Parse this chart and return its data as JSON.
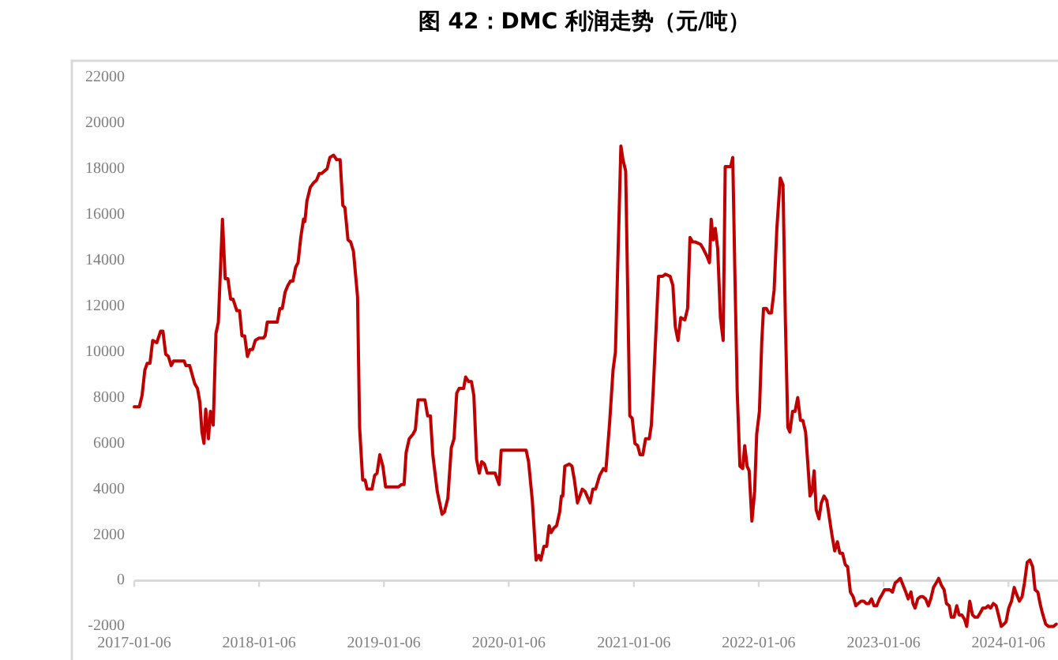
{
  "chart_data": {
    "type": "line",
    "title": "图 42：DMC 利润走势（元/吨）",
    "xlim": [
      "2017-01-06",
      "2024-05-30"
    ],
    "xticks": [
      "2017-01-06",
      "2018-01-06",
      "2019-01-06",
      "2020-01-06",
      "2021-01-06",
      "2022-01-06",
      "2023-01-06",
      "2024-01-06"
    ],
    "ylim": [
      -2000,
      22000
    ],
    "yticks": [
      -2000,
      0,
      2000,
      4000,
      6000,
      8000,
      10000,
      12000,
      14000,
      16000,
      18000,
      20000,
      22000
    ],
    "x": [
      "2017-01-06",
      "2017-01-21",
      "2017-01-29",
      "2017-02-06",
      "2017-02-13",
      "2017-02-21",
      "2017-03-01",
      "2017-03-13",
      "2017-03-24",
      "2017-03-31",
      "2017-04-08",
      "2017-04-16",
      "2017-04-24",
      "2017-05-01",
      "2017-06-01",
      "2017-06-06",
      "2017-06-17",
      "2017-07-02",
      "2017-07-10",
      "2017-07-17",
      "2017-07-23",
      "2017-07-29",
      "2017-08-03",
      "2017-08-11",
      "2017-08-17",
      "2017-08-25",
      "2017-09-02",
      "2017-09-09",
      "2017-09-21",
      "2017-09-29",
      "2017-10-07",
      "2017-10-15",
      "2017-10-22",
      "2017-11-02",
      "2017-11-10",
      "2017-11-17",
      "2017-11-25",
      "2017-12-03",
      "2017-12-10",
      "2017-12-18",
      "2017-12-26",
      "2018-01-05",
      "2018-01-18",
      "2018-01-24",
      "2018-01-30",
      "2018-02-13",
      "2018-02-28",
      "2018-03-08",
      "2018-03-15",
      "2018-03-23",
      "2018-03-31",
      "2018-04-08",
      "2018-04-15",
      "2018-04-23",
      "2018-04-30",
      "2018-05-08",
      "2018-05-16",
      "2018-05-20",
      "2018-05-26",
      "2018-06-05",
      "2018-06-15",
      "2018-06-23",
      "2018-07-01",
      "2018-07-08",
      "2018-07-16",
      "2018-07-24",
      "2018-08-01",
      "2018-08-12",
      "2018-08-21",
      "2018-08-31",
      "2018-09-08",
      "2018-09-14",
      "2018-09-23",
      "2018-10-01",
      "2018-10-09",
      "2018-10-21",
      "2018-10-27",
      "2018-11-05",
      "2018-11-12",
      "2018-11-18",
      "2018-12-02",
      "2018-12-10",
      "2018-12-17",
      "2018-12-25",
      "2019-01-03",
      "2019-01-11",
      "2019-01-23",
      "2019-02-18",
      "2019-02-26",
      "2019-03-06",
      "2019-03-12",
      "2019-03-21",
      "2019-04-01",
      "2019-04-08",
      "2019-04-16",
      "2019-05-06",
      "2019-05-14",
      "2019-05-22",
      "2019-05-29",
      "2019-06-11",
      "2019-06-25",
      "2019-07-02",
      "2019-07-12",
      "2019-07-22",
      "2019-07-30",
      "2019-08-07",
      "2019-08-14",
      "2019-08-27",
      "2019-09-02",
      "2019-09-11",
      "2019-09-19",
      "2019-09-26",
      "2019-10-04",
      "2019-10-12",
      "2019-10-19",
      "2019-10-27",
      "2019-11-04",
      "2019-11-27",
      "2019-12-09",
      "2019-12-15",
      "2020-01-06",
      "2020-02-26",
      "2020-03-04",
      "2020-03-15",
      "2020-03-26",
      "2020-04-03",
      "2020-04-09",
      "2020-04-18",
      "2020-04-26",
      "2020-05-03",
      "2020-05-09",
      "2020-05-17",
      "2020-05-25",
      "2020-06-03",
      "2020-06-08",
      "2020-06-12",
      "2020-06-18",
      "2020-07-01",
      "2020-07-09",
      "2020-07-16",
      "2020-07-25",
      "2020-08-08",
      "2020-08-16",
      "2020-08-31",
      "2020-09-08",
      "2020-09-16",
      "2020-09-28",
      "2020-10-09",
      "2020-10-16",
      "2020-10-27",
      "2020-11-06",
      "2020-11-13",
      "2020-11-29",
      "2020-12-05",
      "2020-12-13",
      "2020-12-25",
      "2021-01-01",
      "2021-01-09",
      "2021-01-17",
      "2021-01-24",
      "2021-02-01",
      "2021-02-09",
      "2021-02-20",
      "2021-02-26",
      "2021-03-04",
      "2021-03-19",
      "2021-03-31",
      "2021-04-08",
      "2021-04-22",
      "2021-04-30",
      "2021-05-07",
      "2021-05-15",
      "2021-05-23",
      "2021-06-04",
      "2021-06-12",
      "2021-06-19",
      "2021-06-27",
      "2021-07-05",
      "2021-07-20",
      "2021-07-28",
      "2021-08-07",
      "2021-08-15",
      "2021-08-20",
      "2021-08-26",
      "2021-09-01",
      "2021-09-08",
      "2021-09-16",
      "2021-09-24",
      "2021-09-30",
      "2021-10-16",
      "2021-10-22",
      "2021-10-28",
      "2021-11-04",
      "2021-11-12",
      "2021-11-20",
      "2021-11-26",
      "2021-12-03",
      "2021-12-09",
      "2021-12-17",
      "2021-12-25",
      "2021-12-31",
      "2022-01-08",
      "2022-01-15",
      "2022-01-20",
      "2022-01-28",
      "2022-02-05",
      "2022-02-12",
      "2022-02-20",
      "2022-02-28",
      "2022-03-10",
      "2022-03-18",
      "2022-03-25",
      "2022-04-01",
      "2022-04-07",
      "2022-04-15",
      "2022-04-22",
      "2022-04-30",
      "2022-05-08",
      "2022-05-15",
      "2022-05-23",
      "2022-05-31",
      "2022-06-05",
      "2022-06-11",
      "2022-06-17",
      "2022-06-23",
      "2022-07-01",
      "2022-07-08",
      "2022-07-16",
      "2022-07-24",
      "2022-08-01",
      "2022-08-08",
      "2022-08-16",
      "2022-08-24",
      "2022-08-31",
      "2022-09-08",
      "2022-09-16",
      "2022-09-23",
      "2022-10-01",
      "2022-10-09",
      "2022-10-17",
      "2022-10-24",
      "2022-11-01",
      "2022-11-09",
      "2022-11-16",
      "2022-11-24",
      "2022-12-02",
      "2022-12-09",
      "2022-12-17",
      "2022-12-25",
      "2023-01-02",
      "2023-01-09",
      "2023-01-17",
      "2023-01-24",
      "2023-02-01",
      "2023-02-09",
      "2023-02-17",
      "2023-02-24",
      "2023-03-04",
      "2023-03-12",
      "2023-03-19",
      "2023-03-27",
      "2023-04-02",
      "2023-04-08",
      "2023-04-16",
      "2023-04-24",
      "2023-05-01",
      "2023-05-09",
      "2023-05-17",
      "2023-05-24",
      "2023-06-01",
      "2023-06-09",
      "2023-06-16",
      "2023-06-24",
      "2023-07-02",
      "2023-07-09",
      "2023-07-17",
      "2023-07-23",
      "2023-07-31",
      "2023-08-08",
      "2023-08-15",
      "2023-08-23",
      "2023-08-31",
      "2023-09-06",
      "2023-09-15",
      "2023-09-23",
      "2023-09-30",
      "2023-10-08",
      "2023-10-16",
      "2023-10-23",
      "2023-10-31",
      "2023-11-08",
      "2023-11-15",
      "2023-11-23",
      "2023-12-01",
      "2023-12-08",
      "2023-12-16",
      "2023-12-24",
      "2023-12-30",
      "2024-01-07",
      "2024-01-15",
      "2024-01-23",
      "2024-01-30",
      "2024-02-07",
      "2024-02-15",
      "2024-02-22",
      "2024-03-01",
      "2024-03-09",
      "2024-03-17",
      "2024-03-24",
      "2024-04-01",
      "2024-04-09",
      "2024-04-16",
      "2024-04-24",
      "2024-05-02",
      "2024-05-10",
      "2024-05-17",
      "2024-05-25"
    ],
    "series": [
      {
        "color": "#c00000",
        "values": [
          7600,
          7600,
          8100,
          9200,
          9500,
          9500,
          10500,
          10400,
          10900,
          10900,
          9900,
          9800,
          9400,
          9600,
          9600,
          9400,
          9400,
          8600,
          8400,
          7800,
          6500,
          6000,
          7500,
          6200,
          7400,
          6800,
          10800,
          11300,
          15800,
          13200,
          13200,
          12300,
          12300,
          11800,
          11800,
          10700,
          10700,
          9800,
          10100,
          10100,
          10500,
          10600,
          10600,
          10700,
          11300,
          11300,
          11300,
          11900,
          11900,
          12600,
          12900,
          13100,
          13100,
          13700,
          13900,
          15000,
          15800,
          15700,
          16600,
          17200,
          17400,
          17500,
          17800,
          17800,
          17900,
          18000,
          18500,
          18600,
          18400,
          18400,
          16400,
          16300,
          14900,
          14800,
          14400,
          12400,
          6700,
          4400,
          4400,
          4000,
          4000,
          4600,
          4700,
          5500,
          5000,
          4100,
          4100,
          4100,
          4200,
          4200,
          5600,
          6200,
          6400,
          6600,
          7900,
          7900,
          7200,
          7200,
          5500,
          3900,
          2900,
          3000,
          3600,
          5800,
          6200,
          8200,
          8400,
          8400,
          8900,
          8700,
          8700,
          8100,
          5300,
          4700,
          5200,
          5100,
          4700,
          4700,
          4200,
          5700,
          5700,
          5700,
          5200,
          3500,
          900,
          1100,
          900,
          1500,
          1500,
          2400,
          2100,
          2300,
          2400,
          3000,
          3700,
          3700,
          5000,
          5100,
          5000,
          4400,
          3400,
          4000,
          3900,
          3400,
          4000,
          4000,
          4600,
          4900,
          4800,
          6900,
          9200,
          10000,
          19000,
          18400,
          17900,
          7200,
          7100,
          6000,
          5900,
          5500,
          5500,
          6200,
          6200,
          6800,
          8500,
          13300,
          13300,
          13400,
          13300,
          12900,
          11100,
          10500,
          11500,
          11400,
          11900,
          15000,
          14800,
          14800,
          14700,
          14500,
          14200,
          13900,
          15800,
          14900,
          15400,
          14500,
          11500,
          10500,
          18100,
          18100,
          18500,
          13600,
          8300,
          5000,
          4900,
          5900,
          5000,
          4800,
          2600,
          3900,
          6400,
          7400,
          10500,
          11900,
          11900,
          11700,
          11700,
          12700,
          15400,
          17600,
          17300,
          11300,
          6700,
          6500,
          7400,
          7400,
          8000,
          7000,
          7000,
          6500,
          4800,
          3700,
          3900,
          4800,
          3100,
          2700,
          3400,
          3700,
          3500,
          2700,
          2000,
          1300,
          1700,
          1200,
          1200,
          700,
          600,
          -500,
          -700,
          -1100,
          -1000,
          -900,
          -900,
          -1000,
          -1000,
          -800,
          -1100,
          -1100,
          -800,
          -600,
          -400,
          -400,
          -400,
          -500,
          -100,
          0,
          100,
          -200,
          -500,
          -800,
          -500,
          -1000,
          -1200,
          -800,
          -700,
          -700,
          -800,
          -1100,
          -800,
          -300,
          -100,
          100,
          -200,
          -400,
          -1000,
          -1100,
          -1600,
          -1600,
          -1100,
          -1500,
          -1500,
          -1700,
          -2000,
          -900,
          -1500,
          -1600,
          -1600,
          -1400,
          -1200,
          -1200,
          -1100,
          -1200,
          -1000,
          -1100,
          -1500,
          -2000,
          -1900,
          -1800,
          -1200,
          -900,
          -300,
          -600,
          -900,
          -700,
          -100,
          800,
          900,
          600,
          -400,
          -500,
          -1100,
          -1500,
          -1900,
          -2000,
          -2000,
          -2000,
          -1900
        ]
      }
    ]
  }
}
